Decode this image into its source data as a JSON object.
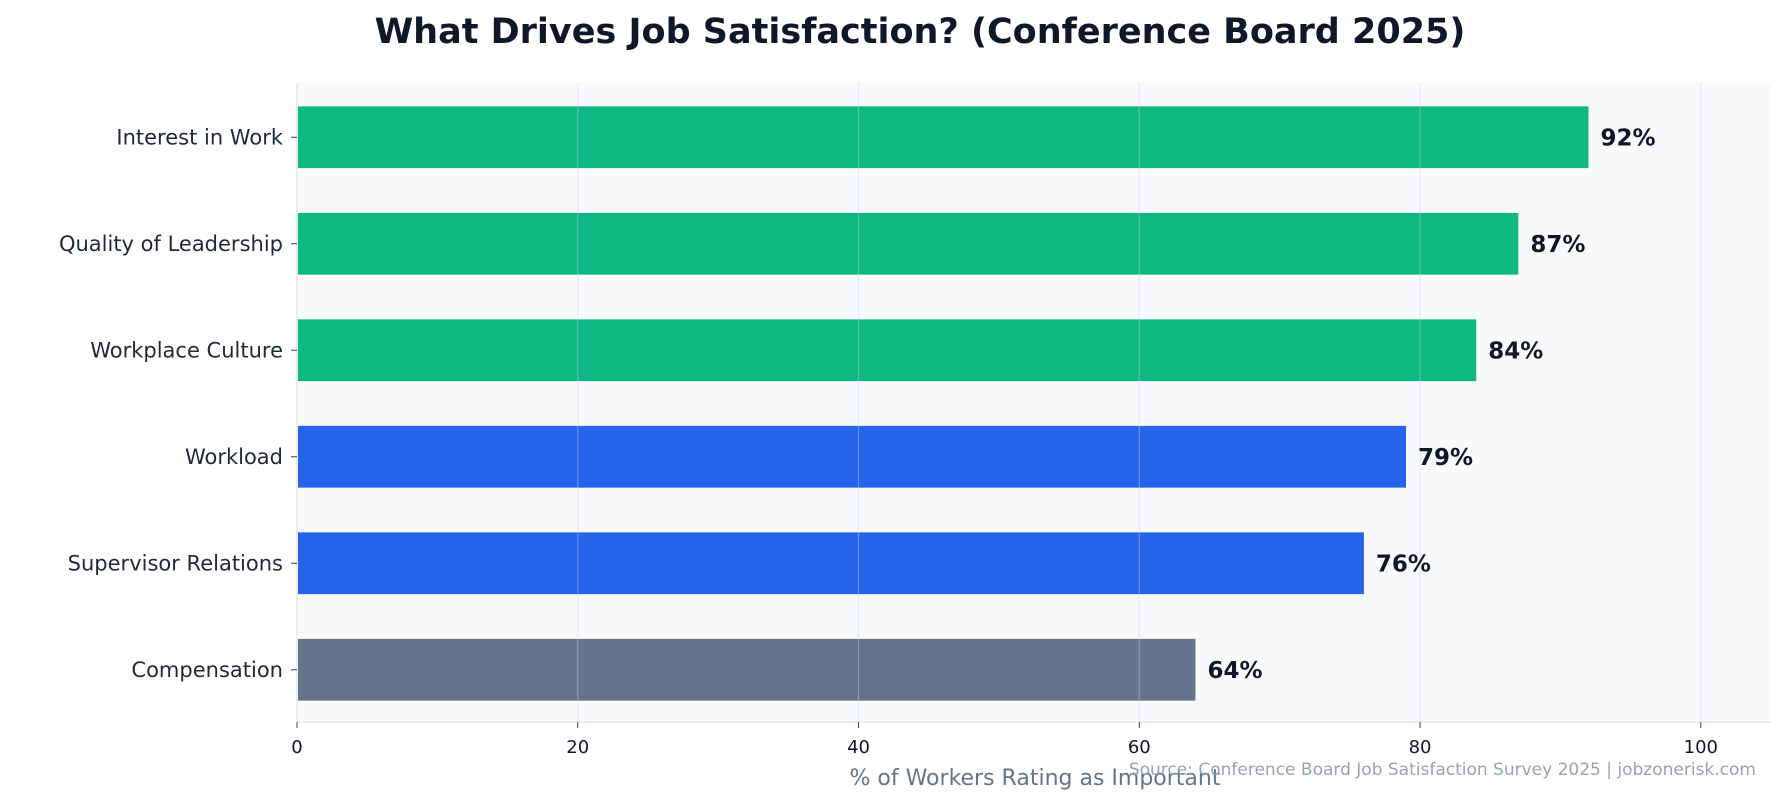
{
  "chart_data": {
    "type": "bar",
    "orientation": "horizontal",
    "title": "What Drives Job Satisfaction? (Conference Board 2025)",
    "xlabel": "% of Workers Rating as Important",
    "ylabel": "",
    "categories": [
      "Interest in Work",
      "Quality of Leadership",
      "Workplace Culture",
      "Workload",
      "Supervisor Relations",
      "Compensation"
    ],
    "values": [
      92,
      87,
      84,
      79,
      76,
      64
    ],
    "data_labels": [
      "92%",
      "87%",
      "84%",
      "79%",
      "76%",
      "64%"
    ],
    "bar_colors": [
      "#10b981",
      "#10b981",
      "#10b981",
      "#2563eb",
      "#2563eb",
      "#64748b"
    ],
    "xlim": [
      0,
      105
    ],
    "xticks": [
      0,
      20,
      40,
      60,
      80,
      100
    ],
    "xtick_labels": [
      "0",
      "20",
      "40",
      "60",
      "80",
      "100"
    ],
    "grid": "vertical",
    "background_color": "#f8fafc",
    "source": "Source: Conference Board Job Satisfaction Survey 2025 | jobzonerisk.com"
  }
}
